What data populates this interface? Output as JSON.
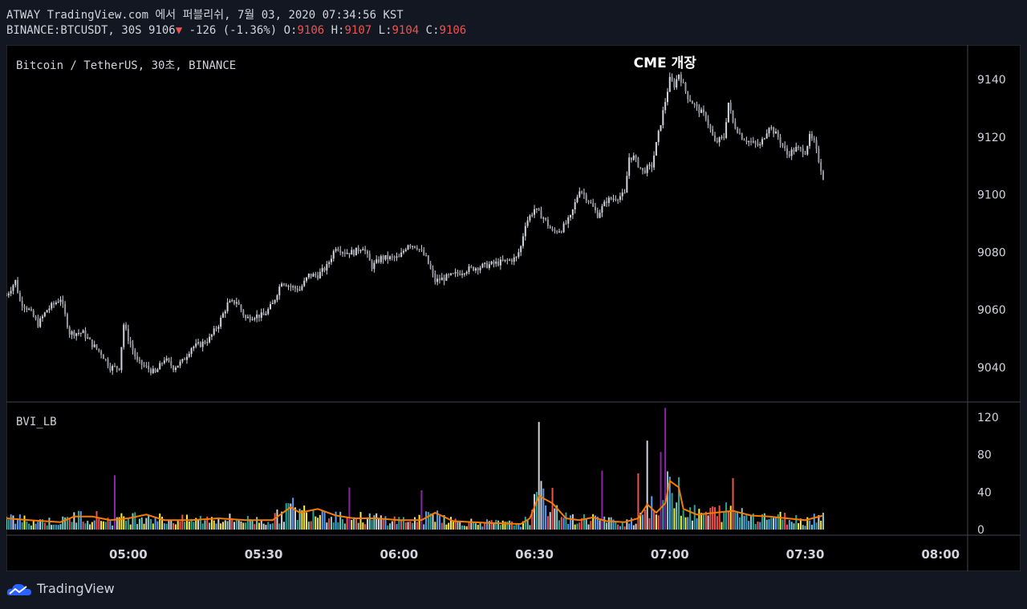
{
  "header": {
    "line1": "ATWAY TradingView.com 에서 퍼블리쉬, 7월 03, 2020 07:34:56 KST",
    "symbol": "BINANCE:BTCUSDT, 30S 9106",
    "change_arrow": "▼",
    "change": "-126 (-1.36%)",
    "o_label": "O:",
    "o_value": "9106",
    "h_label": "H:",
    "h_value": "9107",
    "l_label": "L:",
    "l_value": "9104",
    "c_label": "C:",
    "c_value": "9106"
  },
  "footer": {
    "brand": "TradingView"
  },
  "colors": {
    "background": "#000000",
    "page": "#131722",
    "candle": "#d1d4dc",
    "volume_up": "#26a69a",
    "volume_down": "#ef5350",
    "volume_spike": "#8e24aa",
    "volume_ma": "#f57c00",
    "accent_red": "#ef5350",
    "annotation": "#ffffff"
  },
  "chart_data": [
    {
      "type": "candlestick",
      "title": "Bitcoin / TetherUS, 30초, BINANCE",
      "annotation": {
        "text": "CME 개장",
        "x": "07:00",
        "y": 9145
      },
      "xlabels": [
        "05:00",
        "05:30",
        "06:00",
        "06:30",
        "07:00",
        "07:30",
        "08:00"
      ],
      "xlim": [
        "04:33",
        "08:06"
      ],
      "ylim": [
        9028,
        9152
      ],
      "yticks": [
        9040,
        9060,
        9080,
        9100,
        9120,
        9140
      ],
      "grid": false,
      "close_path": [
        [
          "04:33",
          9065
        ],
        [
          "04:35",
          9070
        ],
        [
          "04:36",
          9063
        ],
        [
          "04:38",
          9060
        ],
        [
          "04:40",
          9055
        ],
        [
          "04:42",
          9060
        ],
        [
          "04:45",
          9064
        ],
        [
          "04:47",
          9052
        ],
        [
          "04:50",
          9052
        ],
        [
          "04:52",
          9048
        ],
        [
          "04:54",
          9045
        ],
        [
          "04:56",
          9040
        ],
        [
          "04:58",
          9040
        ],
        [
          "04:59",
          9055
        ],
        [
          "05:00",
          9050
        ],
        [
          "05:02",
          9042
        ],
        [
          "05:04",
          9040
        ],
        [
          "05:06",
          9038
        ],
        [
          "05:08",
          9043
        ],
        [
          "05:10",
          9040
        ],
        [
          "05:12",
          9042
        ],
        [
          "05:14",
          9047
        ],
        [
          "05:16",
          9048
        ],
        [
          "05:18",
          9050
        ],
        [
          "05:20",
          9055
        ],
        [
          "05:22",
          9062
        ],
        [
          "05:24",
          9063
        ],
        [
          "05:26",
          9057
        ],
        [
          "05:28",
          9058
        ],
        [
          "05:30",
          9058
        ],
        [
          "05:32",
          9062
        ],
        [
          "05:34",
          9070
        ],
        [
          "05:36",
          9068
        ],
        [
          "05:38",
          9067
        ],
        [
          "05:40",
          9072
        ],
        [
          "05:42",
          9072
        ],
        [
          "05:44",
          9075
        ],
        [
          "05:46",
          9082
        ],
        [
          "05:48",
          9080
        ],
        [
          "05:50",
          9080
        ],
        [
          "05:52",
          9082
        ],
        [
          "05:54",
          9075
        ],
        [
          "05:56",
          9078
        ],
        [
          "05:58",
          9078
        ],
        [
          "06:00",
          9078
        ],
        [
          "06:02",
          9083
        ],
        [
          "06:04",
          9082
        ],
        [
          "06:06",
          9078
        ],
        [
          "06:08",
          9070
        ],
        [
          "06:10",
          9071
        ],
        [
          "06:12",
          9072
        ],
        [
          "06:15",
          9074
        ],
        [
          "06:18",
          9075
        ],
        [
          "06:21",
          9076
        ],
        [
          "06:24",
          9077
        ],
        [
          "06:26",
          9078
        ],
        [
          "06:27",
          9082
        ],
        [
          "06:28",
          9090
        ],
        [
          "06:30",
          9095
        ],
        [
          "06:32",
          9092
        ],
        [
          "06:34",
          9087
        ],
        [
          "06:36",
          9088
        ],
        [
          "06:38",
          9092
        ],
        [
          "06:40",
          9102
        ],
        [
          "06:42",
          9098
        ],
        [
          "06:44",
          9093
        ],
        [
          "06:46",
          9098
        ],
        [
          "06:48",
          9099
        ],
        [
          "06:50",
          9100
        ],
        [
          "06:51",
          9113
        ],
        [
          "06:52",
          9113
        ],
        [
          "06:54",
          9108
        ],
        [
          "06:56",
          9110
        ],
        [
          "06:58",
          9125
        ],
        [
          "07:00",
          9140
        ],
        [
          "07:01",
          9138
        ],
        [
          "07:02",
          9142
        ],
        [
          "07:04",
          9134
        ],
        [
          "07:06",
          9130
        ],
        [
          "07:08",
          9127
        ],
        [
          "07:10",
          9118
        ],
        [
          "07:12",
          9120
        ],
        [
          "07:13",
          9132
        ],
        [
          "07:14",
          9125
        ],
        [
          "07:16",
          9120
        ],
        [
          "07:18",
          9118
        ],
        [
          "07:20",
          9117
        ],
        [
          "07:22",
          9124
        ],
        [
          "07:24",
          9120
        ],
        [
          "07:26",
          9114
        ],
        [
          "07:28",
          9116
        ],
        [
          "07:30",
          9115
        ],
        [
          "07:31",
          9120
        ],
        [
          "07:32",
          9118
        ],
        [
          "07:33",
          9112
        ],
        [
          "07:34",
          9106
        ]
      ]
    },
    {
      "type": "bar",
      "title": "BVI_LB",
      "ylim": [
        0,
        132
      ],
      "yticks": [
        0,
        40,
        80,
        120
      ],
      "notable_bars": [
        {
          "x": "06:31",
          "value": 115,
          "color": "white"
        },
        {
          "x": "06:53",
          "value": 60,
          "color": "red"
        },
        {
          "x": "06:55",
          "value": 95,
          "color": "white"
        },
        {
          "x": "06:59",
          "value": 130,
          "color": "purple"
        },
        {
          "x": "06:58",
          "value": 83,
          "color": "purple"
        },
        {
          "x": "06:45",
          "value": 63,
          "color": "purple"
        },
        {
          "x": "04:57",
          "value": 58,
          "color": "purple"
        },
        {
          "x": "05:49",
          "value": 45,
          "color": "purple"
        },
        {
          "x": "06:05",
          "value": 42,
          "color": "purple"
        },
        {
          "x": "07:14",
          "value": 55,
          "color": "red"
        }
      ],
      "moving_average": [
        [
          "04:33",
          12
        ],
        [
          "04:38",
          10
        ],
        [
          "04:45",
          8
        ],
        [
          "04:48",
          14
        ],
        [
          "04:52",
          14
        ],
        [
          "04:56",
          10
        ],
        [
          "05:00",
          12
        ],
        [
          "05:04",
          16
        ],
        [
          "05:08",
          10
        ],
        [
          "05:14",
          10
        ],
        [
          "05:20",
          12
        ],
        [
          "05:26",
          10
        ],
        [
          "05:32",
          10
        ],
        [
          "05:36",
          24
        ],
        [
          "05:38",
          18
        ],
        [
          "05:42",
          22
        ],
        [
          "05:46",
          15
        ],
        [
          "05:50",
          12
        ],
        [
          "05:55",
          12
        ],
        [
          "06:00",
          10
        ],
        [
          "06:05",
          10
        ],
        [
          "06:08",
          18
        ],
        [
          "06:12",
          9
        ],
        [
          "06:20",
          7
        ],
        [
          "06:27",
          6
        ],
        [
          "06:29",
          12
        ],
        [
          "06:31",
          36
        ],
        [
          "06:34",
          28
        ],
        [
          "06:37",
          12
        ],
        [
          "06:40",
          10
        ],
        [
          "06:43",
          13
        ],
        [
          "06:46",
          9
        ],
        [
          "06:50",
          8
        ],
        [
          "06:53",
          12
        ],
        [
          "06:55",
          27
        ],
        [
          "06:57",
          18
        ],
        [
          "06:59",
          28
        ],
        [
          "07:00",
          52
        ],
        [
          "07:02",
          45
        ],
        [
          "07:03",
          22
        ],
        [
          "07:06",
          16
        ],
        [
          "07:10",
          18
        ],
        [
          "07:14",
          20
        ],
        [
          "07:18",
          15
        ],
        [
          "07:22",
          14
        ],
        [
          "07:26",
          12
        ],
        [
          "07:30",
          10
        ],
        [
          "07:34",
          15
        ]
      ]
    }
  ]
}
